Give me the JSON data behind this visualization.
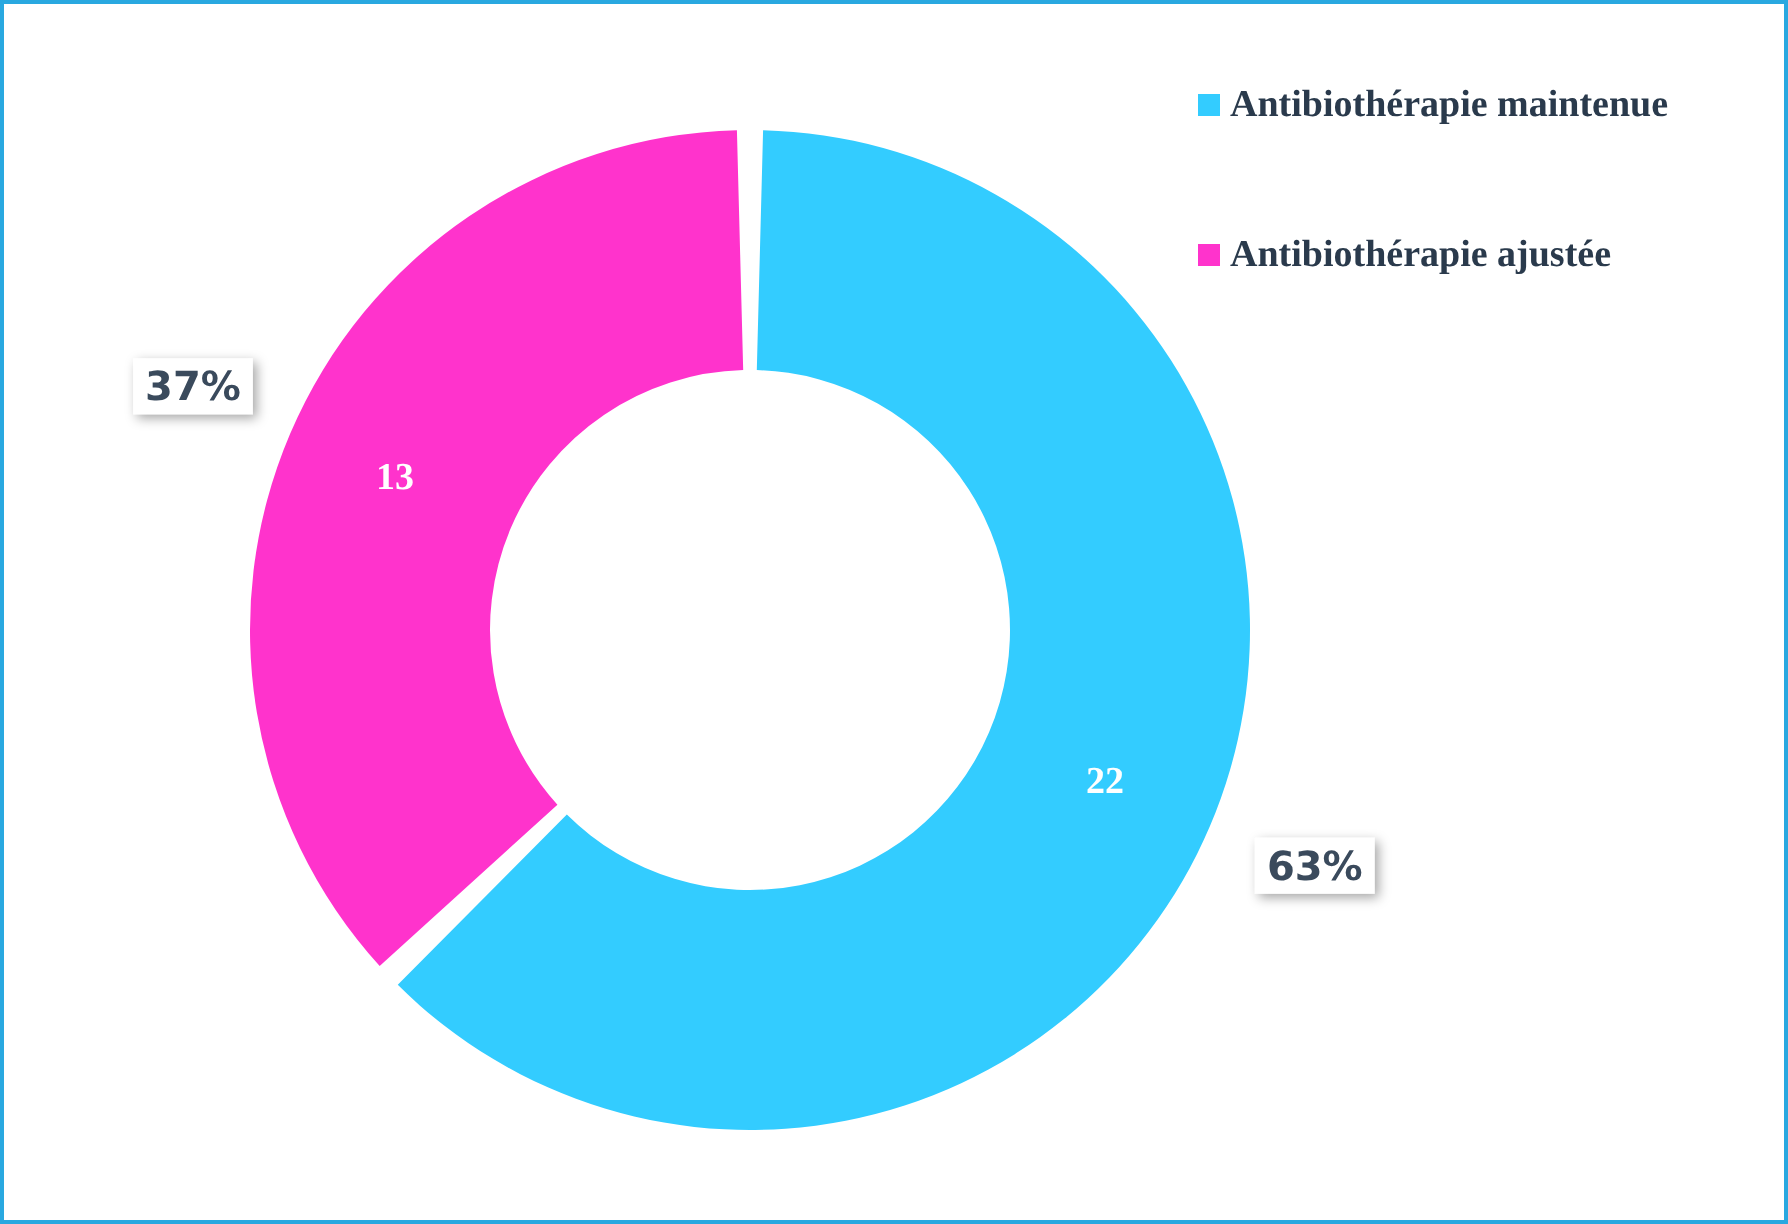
{
  "chart_data": {
    "type": "donut",
    "categories": [
      "Antibiothérapie maintenue",
      "Antibiothérapie ajustée"
    ],
    "values": [
      22,
      13
    ],
    "colors": [
      "#33ccff",
      "#ff33cc"
    ],
    "value_labels": [
      "22",
      "13"
    ],
    "annotations": [
      "63%",
      "37%"
    ],
    "legend": "top right"
  }
}
